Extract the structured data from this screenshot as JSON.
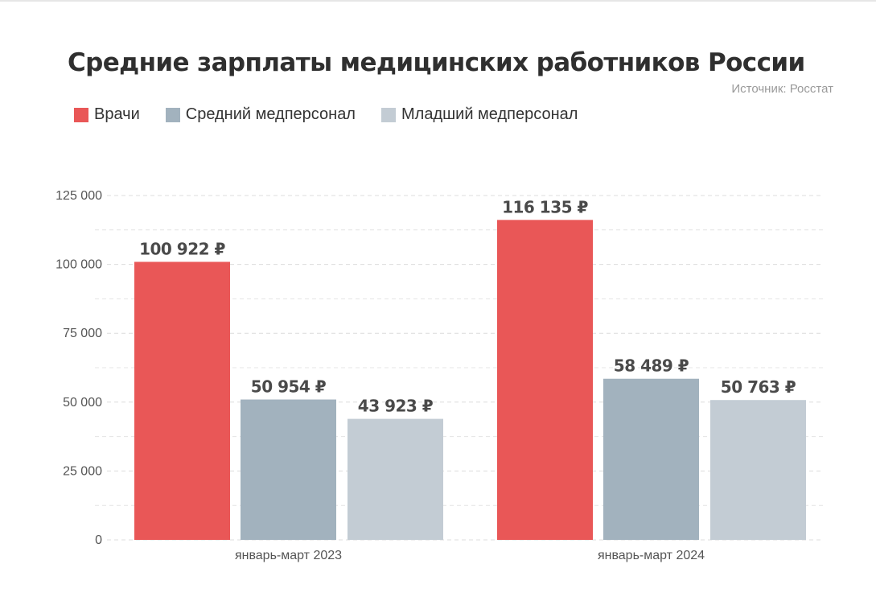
{
  "chart_data": {
    "type": "bar",
    "title": "Средние зарплаты медицинских работников России",
    "source": "Источник: Росстат",
    "xlabel": "",
    "ylabel": "",
    "ylim": [
      0,
      125000
    ],
    "yticks": [
      0,
      25000,
      50000,
      75000,
      100000,
      125000
    ],
    "ytick_labels": [
      "0",
      "25 000",
      "50 000",
      "75 000",
      "100 000",
      "125 000"
    ],
    "minor_gridlines": true,
    "grid": true,
    "legend_position": "top-left",
    "categories": [
      "январь-март 2023",
      "январь-март 2024"
    ],
    "series": [
      {
        "name": "Врачи",
        "color": "#e95757",
        "values": [
          100922,
          116135
        ],
        "labels": [
          "100 922 ₽",
          "116 135 ₽"
        ]
      },
      {
        "name": "Средний медперсонал",
        "color": "#a2b2be",
        "values": [
          50954,
          58489
        ],
        "labels": [
          "50 954 ₽",
          "58 489 ₽"
        ]
      },
      {
        "name": "Младший медперсонал",
        "color": "#c3ccd4",
        "values": [
          43923,
          50763
        ],
        "labels": [
          "43 923 ₽",
          "50 763 ₽"
        ]
      }
    ]
  }
}
